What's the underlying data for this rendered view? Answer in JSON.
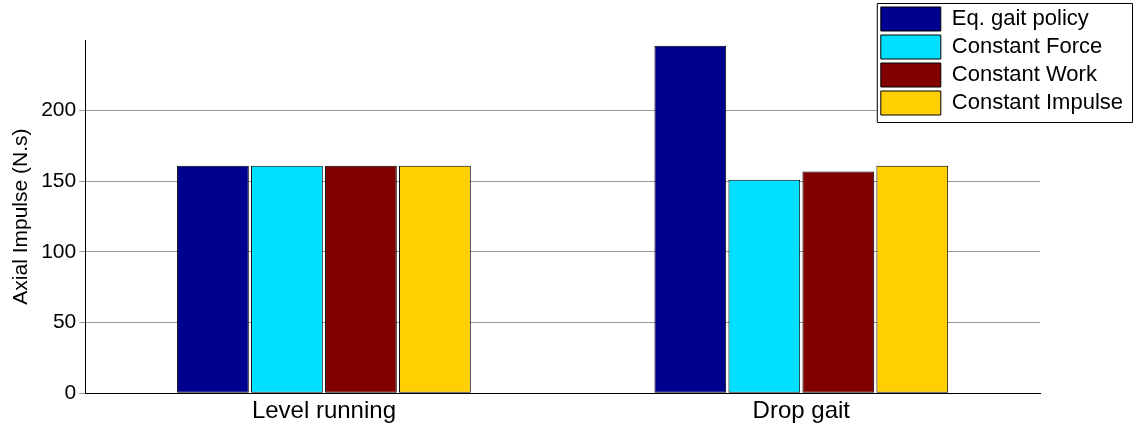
{
  "chart_data": {
    "type": "bar",
    "ylabel": "Axial Impulse (N.s)",
    "categories": [
      "Level running",
      "Drop gait"
    ],
    "series": [
      {
        "name": "Eq. gait policy",
        "color": "#00008f",
        "values": [
          161,
          246
        ]
      },
      {
        "name": "Constant Force",
        "color": "#00dfff",
        "values": [
          161,
          151
        ]
      },
      {
        "name": "Constant Work",
        "color": "#800000",
        "values": [
          161,
          157
        ]
      },
      {
        "name": "Constant Impulse",
        "color": "#ffcf00",
        "values": [
          161,
          161
        ]
      }
    ],
    "ylim": [
      0,
      250
    ],
    "yticks": [
      0,
      50,
      100,
      150,
      200
    ],
    "grid": "y",
    "legend": "top right"
  }
}
